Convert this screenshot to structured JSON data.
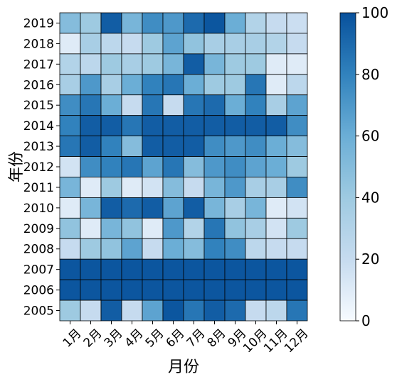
{
  "chart_data": {
    "type": "heatmap",
    "title": "",
    "xlabel": "月份",
    "ylabel": "年份",
    "x_categories": [
      "1月",
      "2月",
      "3月",
      "4月",
      "5月",
      "6月",
      "7月",
      "8月",
      "9月",
      "10月",
      "11月",
      "12月"
    ],
    "y_categories": [
      "2019",
      "2018",
      "2017",
      "2016",
      "2015",
      "2014",
      "2013",
      "2012",
      "2011",
      "2010",
      "2009",
      "2008",
      "2007",
      "2006",
      "2005"
    ],
    "values": [
      [
        50,
        40,
        95,
        55,
        75,
        70,
        90,
        98,
        60,
        30,
        20,
        18
      ],
      [
        10,
        35,
        25,
        20,
        40,
        65,
        45,
        35,
        35,
        35,
        30,
        20
      ],
      [
        30,
        25,
        40,
        35,
        40,
        55,
        95,
        55,
        40,
        40,
        10,
        10
      ],
      [
        35,
        70,
        35,
        60,
        80,
        85,
        60,
        40,
        40,
        85,
        10,
        25
      ],
      [
        75,
        85,
        60,
        20,
        85,
        20,
        85,
        90,
        60,
        80,
        35,
        65
      ],
      [
        80,
        95,
        95,
        85,
        95,
        95,
        95,
        95,
        95,
        95,
        95,
        75
      ],
      [
        85,
        95,
        80,
        50,
        95,
        95,
        95,
        75,
        70,
        75,
        60,
        50
      ],
      [
        15,
        75,
        80,
        85,
        65,
        85,
        50,
        70,
        75,
        65,
        60,
        40
      ],
      [
        55,
        10,
        40,
        10,
        15,
        50,
        20,
        55,
        70,
        35,
        35,
        75
      ],
      [
        10,
        55,
        95,
        90,
        95,
        65,
        95,
        55,
        35,
        55,
        10,
        15
      ],
      [
        45,
        10,
        55,
        45,
        10,
        70,
        30,
        85,
        45,
        35,
        15,
        40
      ],
      [
        20,
        40,
        45,
        65,
        20,
        60,
        50,
        80,
        75,
        25,
        20,
        20
      ],
      [
        98,
        98,
        98,
        98,
        98,
        98,
        98,
        98,
        98,
        98,
        98,
        98
      ],
      [
        98,
        98,
        98,
        98,
        98,
        98,
        98,
        98,
        98,
        98,
        98,
        98
      ],
      [
        40,
        20,
        95,
        20,
        65,
        98,
        85,
        95,
        90,
        20,
        25,
        85
      ]
    ],
    "colorbar": {
      "min": 0,
      "max": 100,
      "ticks": [
        "0",
        "20",
        "40",
        "60",
        "80",
        "100"
      ],
      "colors": [
        "#f7fbff",
        "#c6dbef",
        "#9ecae1",
        "#6baed6",
        "#3182bd",
        "#08519c"
      ]
    }
  }
}
